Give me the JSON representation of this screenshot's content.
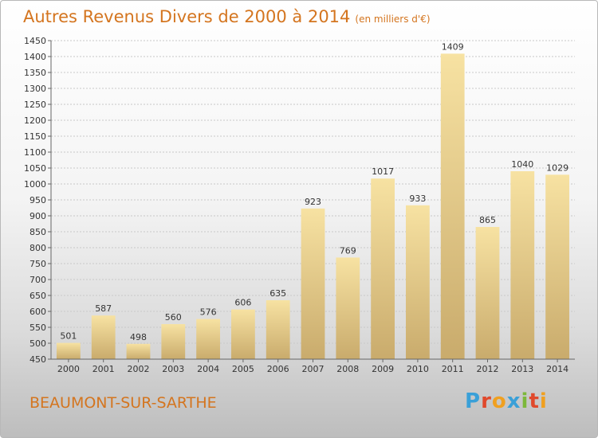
{
  "title": "Autres Revenus Divers de 2000 à 2014",
  "unit_note": "(en milliers d'€)",
  "city": "BEAUMONT-SUR-SARTHE",
  "logo": {
    "text": "Proxiti",
    "colors": [
      "#3aa0d8",
      "#e0492c",
      "#f0a020",
      "#3aa0d8",
      "#7cb83a",
      "#e0492c",
      "#f0a020"
    ]
  },
  "colors": {
    "title": "#d4751f",
    "bar_light": "#f7e2a2",
    "bar_dark": "#c9ab6c",
    "axis": "#666666",
    "grid": "#c8c8c8"
  },
  "chart_data": {
    "type": "bar",
    "title": "Autres Revenus Divers de 2000 à 2014",
    "subtitle": "(en milliers d'€)",
    "xlabel": "",
    "ylabel": "",
    "ylim": [
      450,
      1450
    ],
    "ytick_step": 50,
    "grid": true,
    "categories": [
      "2000",
      "2001",
      "2002",
      "2003",
      "2004",
      "2005",
      "2006",
      "2007",
      "2008",
      "2009",
      "2010",
      "2011",
      "2012",
      "2013",
      "2014"
    ],
    "values": [
      501,
      587,
      498,
      560,
      576,
      606,
      635,
      923,
      769,
      1017,
      933,
      1409,
      865,
      1040,
      1029
    ]
  }
}
